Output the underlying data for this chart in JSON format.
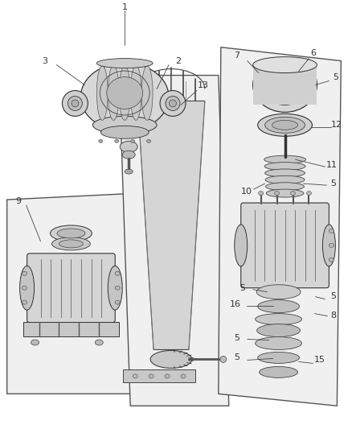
{
  "bg_color": "#ffffff",
  "fig_width": 4.38,
  "fig_height": 5.33,
  "dpi": 100,
  "line_color": "#333333",
  "label_color": "#333333",
  "label_fontsize": 8,
  "panel_edge": "#444444",
  "panel_face": "#f2f2f2",
  "comp_edge": "#333333",
  "comp_face": "#e0e0e0",
  "comp_face2": "#cccccc",
  "comp_face3": "#d5d5d5"
}
